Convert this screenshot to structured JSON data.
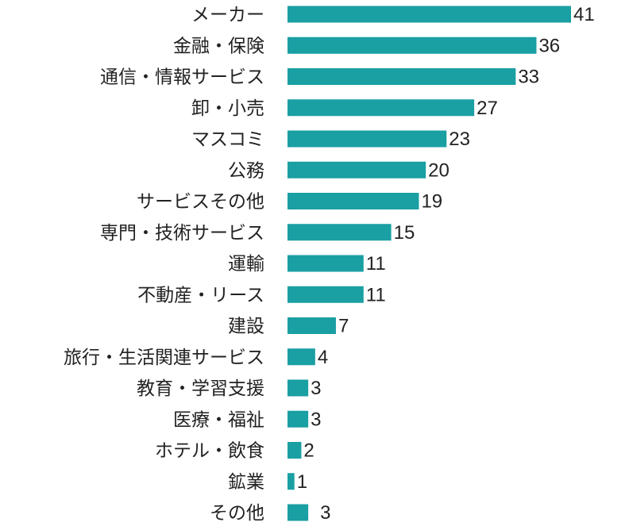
{
  "chart_data": {
    "type": "bar",
    "orientation": "horizontal",
    "categories": [
      "メーカー",
      "金融・保険",
      "通信・情報サービス",
      "卸・小売",
      "マスコミ",
      "公務",
      "サービスその他",
      "専門・技術サービス",
      "運輸",
      "不動産・リース",
      "建設",
      "旅行・生活関連サービス",
      "教育・学習支援",
      "医療・福祉",
      "ホテル・飲食",
      "鉱業",
      "その他"
    ],
    "values": [
      41,
      36,
      33,
      27,
      23,
      20,
      19,
      15,
      11,
      11,
      7,
      4,
      3,
      3,
      2,
      1,
      3
    ],
    "value_labels": [
      "41",
      "36",
      "33",
      "27",
      "23",
      "20",
      "19",
      "15",
      "11",
      "11",
      "7",
      "4",
      "3",
      "3",
      "2",
      "1",
      "3"
    ],
    "title": "",
    "xlabel": "",
    "ylabel": "",
    "xlim": [
      0,
      41
    ],
    "grid": false,
    "legend": "none",
    "bar_color": "#1a9fa3"
  }
}
